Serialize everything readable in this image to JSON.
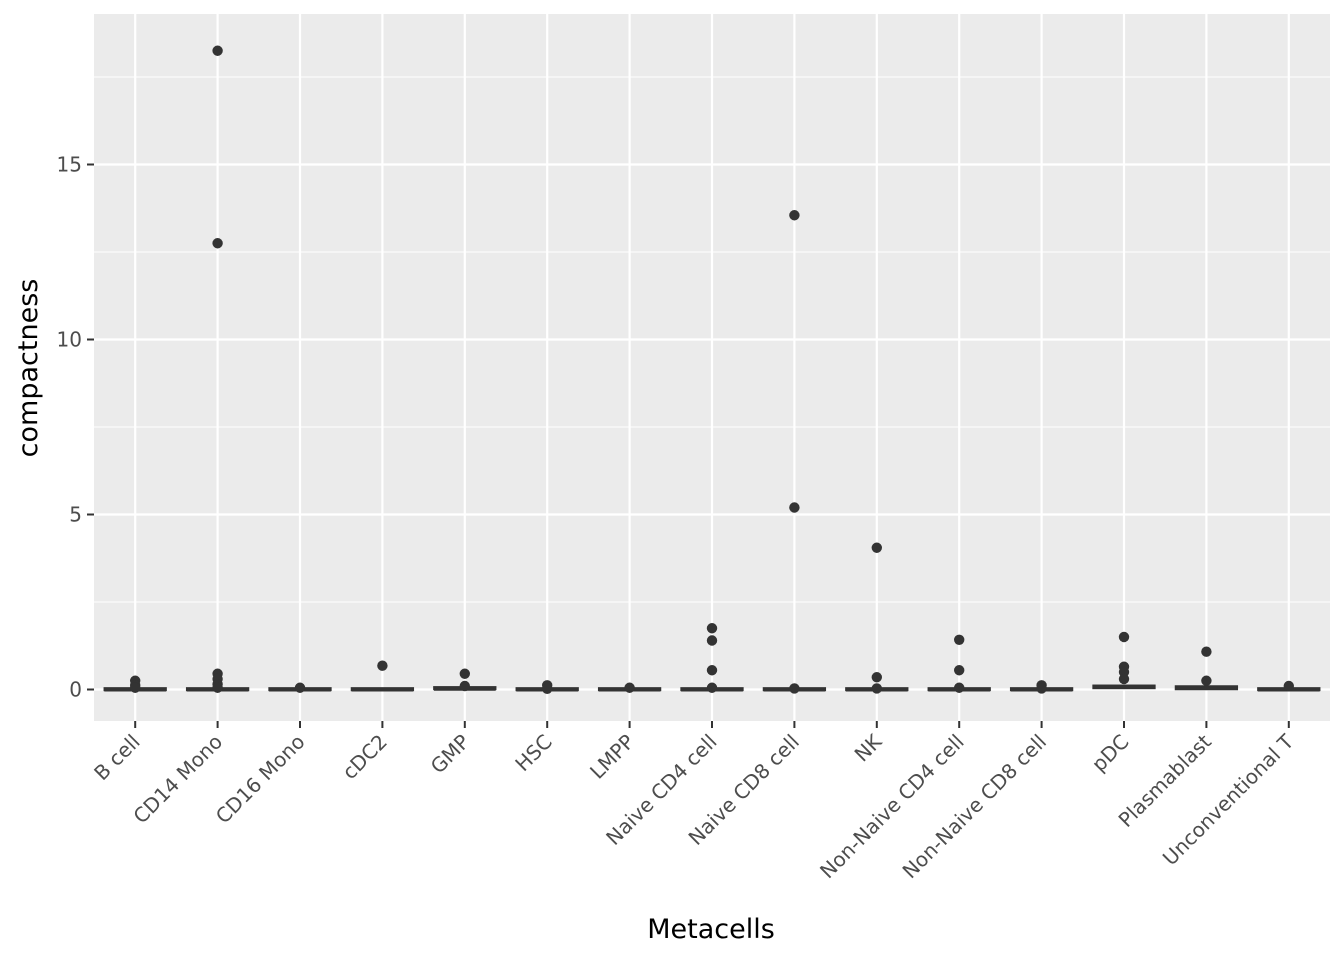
{
  "chart_data": {
    "type": "boxplot",
    "title": "",
    "xlabel": "Metacells",
    "ylabel": "compactness",
    "ylim": [
      -0.9,
      19.3
    ],
    "yticks": [
      0,
      5,
      10,
      15
    ],
    "grid": true,
    "legend": "none",
    "colors": {
      "panel": "#ebebeb",
      "grid": "#ffffff",
      "marks": "#333333",
      "tick_text": "#4d4d4d",
      "title_text": "#000000"
    },
    "categories": [
      "B cell",
      "CD14 Mono",
      "CD16 Mono",
      "cDC2",
      "GMP",
      "HSC",
      "LMPP",
      "Naive CD4 cell",
      "Naive CD8 cell",
      "NK",
      "Non-Naive CD4 cell",
      "Non-Naive CD8 cell",
      "pDC",
      "Plasmablast",
      "Unconventional T"
    ],
    "series": [
      {
        "category": "B cell",
        "median": 0.0,
        "q1": 0.0,
        "q3": 0.01,
        "outliers": [
          0.25,
          0.12,
          0.05
        ]
      },
      {
        "category": "CD14 Mono",
        "median": 0.0,
        "q1": 0.0,
        "q3": 0.01,
        "outliers": [
          18.25,
          12.75,
          0.45,
          0.3,
          0.15,
          0.05
        ]
      },
      {
        "category": "CD16 Mono",
        "median": 0.0,
        "q1": 0.0,
        "q3": 0.01,
        "outliers": [
          0.05
        ]
      },
      {
        "category": "cDC2",
        "median": 0.0,
        "q1": 0.0,
        "q3": 0.01,
        "outliers": [
          0.68
        ]
      },
      {
        "category": "GMP",
        "median": 0.02,
        "q1": 0.0,
        "q3": 0.04,
        "outliers": [
          0.45,
          0.1
        ]
      },
      {
        "category": "HSC",
        "median": 0.0,
        "q1": 0.0,
        "q3": 0.01,
        "outliers": [
          0.12,
          0.02
        ]
      },
      {
        "category": "LMPP",
        "median": 0.0,
        "q1": 0.0,
        "q3": 0.01,
        "outliers": [
          0.05
        ]
      },
      {
        "category": "Naive CD4 cell",
        "median": 0.0,
        "q1": 0.0,
        "q3": 0.01,
        "outliers": [
          1.75,
          1.4,
          0.55,
          0.05
        ]
      },
      {
        "category": "Naive CD8 cell",
        "median": 0.0,
        "q1": 0.0,
        "q3": 0.01,
        "outliers": [
          13.55,
          5.2,
          0.03
        ]
      },
      {
        "category": "NK",
        "median": 0.0,
        "q1": 0.0,
        "q3": 0.01,
        "outliers": [
          4.05,
          0.35,
          0.03
        ]
      },
      {
        "category": "Non-Naive CD4 cell",
        "median": 0.0,
        "q1": 0.0,
        "q3": 0.01,
        "outliers": [
          1.42,
          0.55,
          0.05
        ]
      },
      {
        "category": "Non-Naive CD8 cell",
        "median": 0.0,
        "q1": 0.0,
        "q3": 0.01,
        "outliers": [
          0.12,
          0.03
        ]
      },
      {
        "category": "pDC",
        "median": 0.08,
        "q1": 0.03,
        "q3": 0.12,
        "outliers": [
          1.5,
          0.65,
          0.5,
          0.3
        ]
      },
      {
        "category": "Plasmablast",
        "median": 0.05,
        "q1": 0.0,
        "q3": 0.1,
        "outliers": [
          1.08,
          0.25
        ]
      },
      {
        "category": "Unconventional T",
        "median": 0.0,
        "q1": 0.0,
        "q3": 0.01,
        "outliers": [
          0.1
        ]
      }
    ]
  }
}
